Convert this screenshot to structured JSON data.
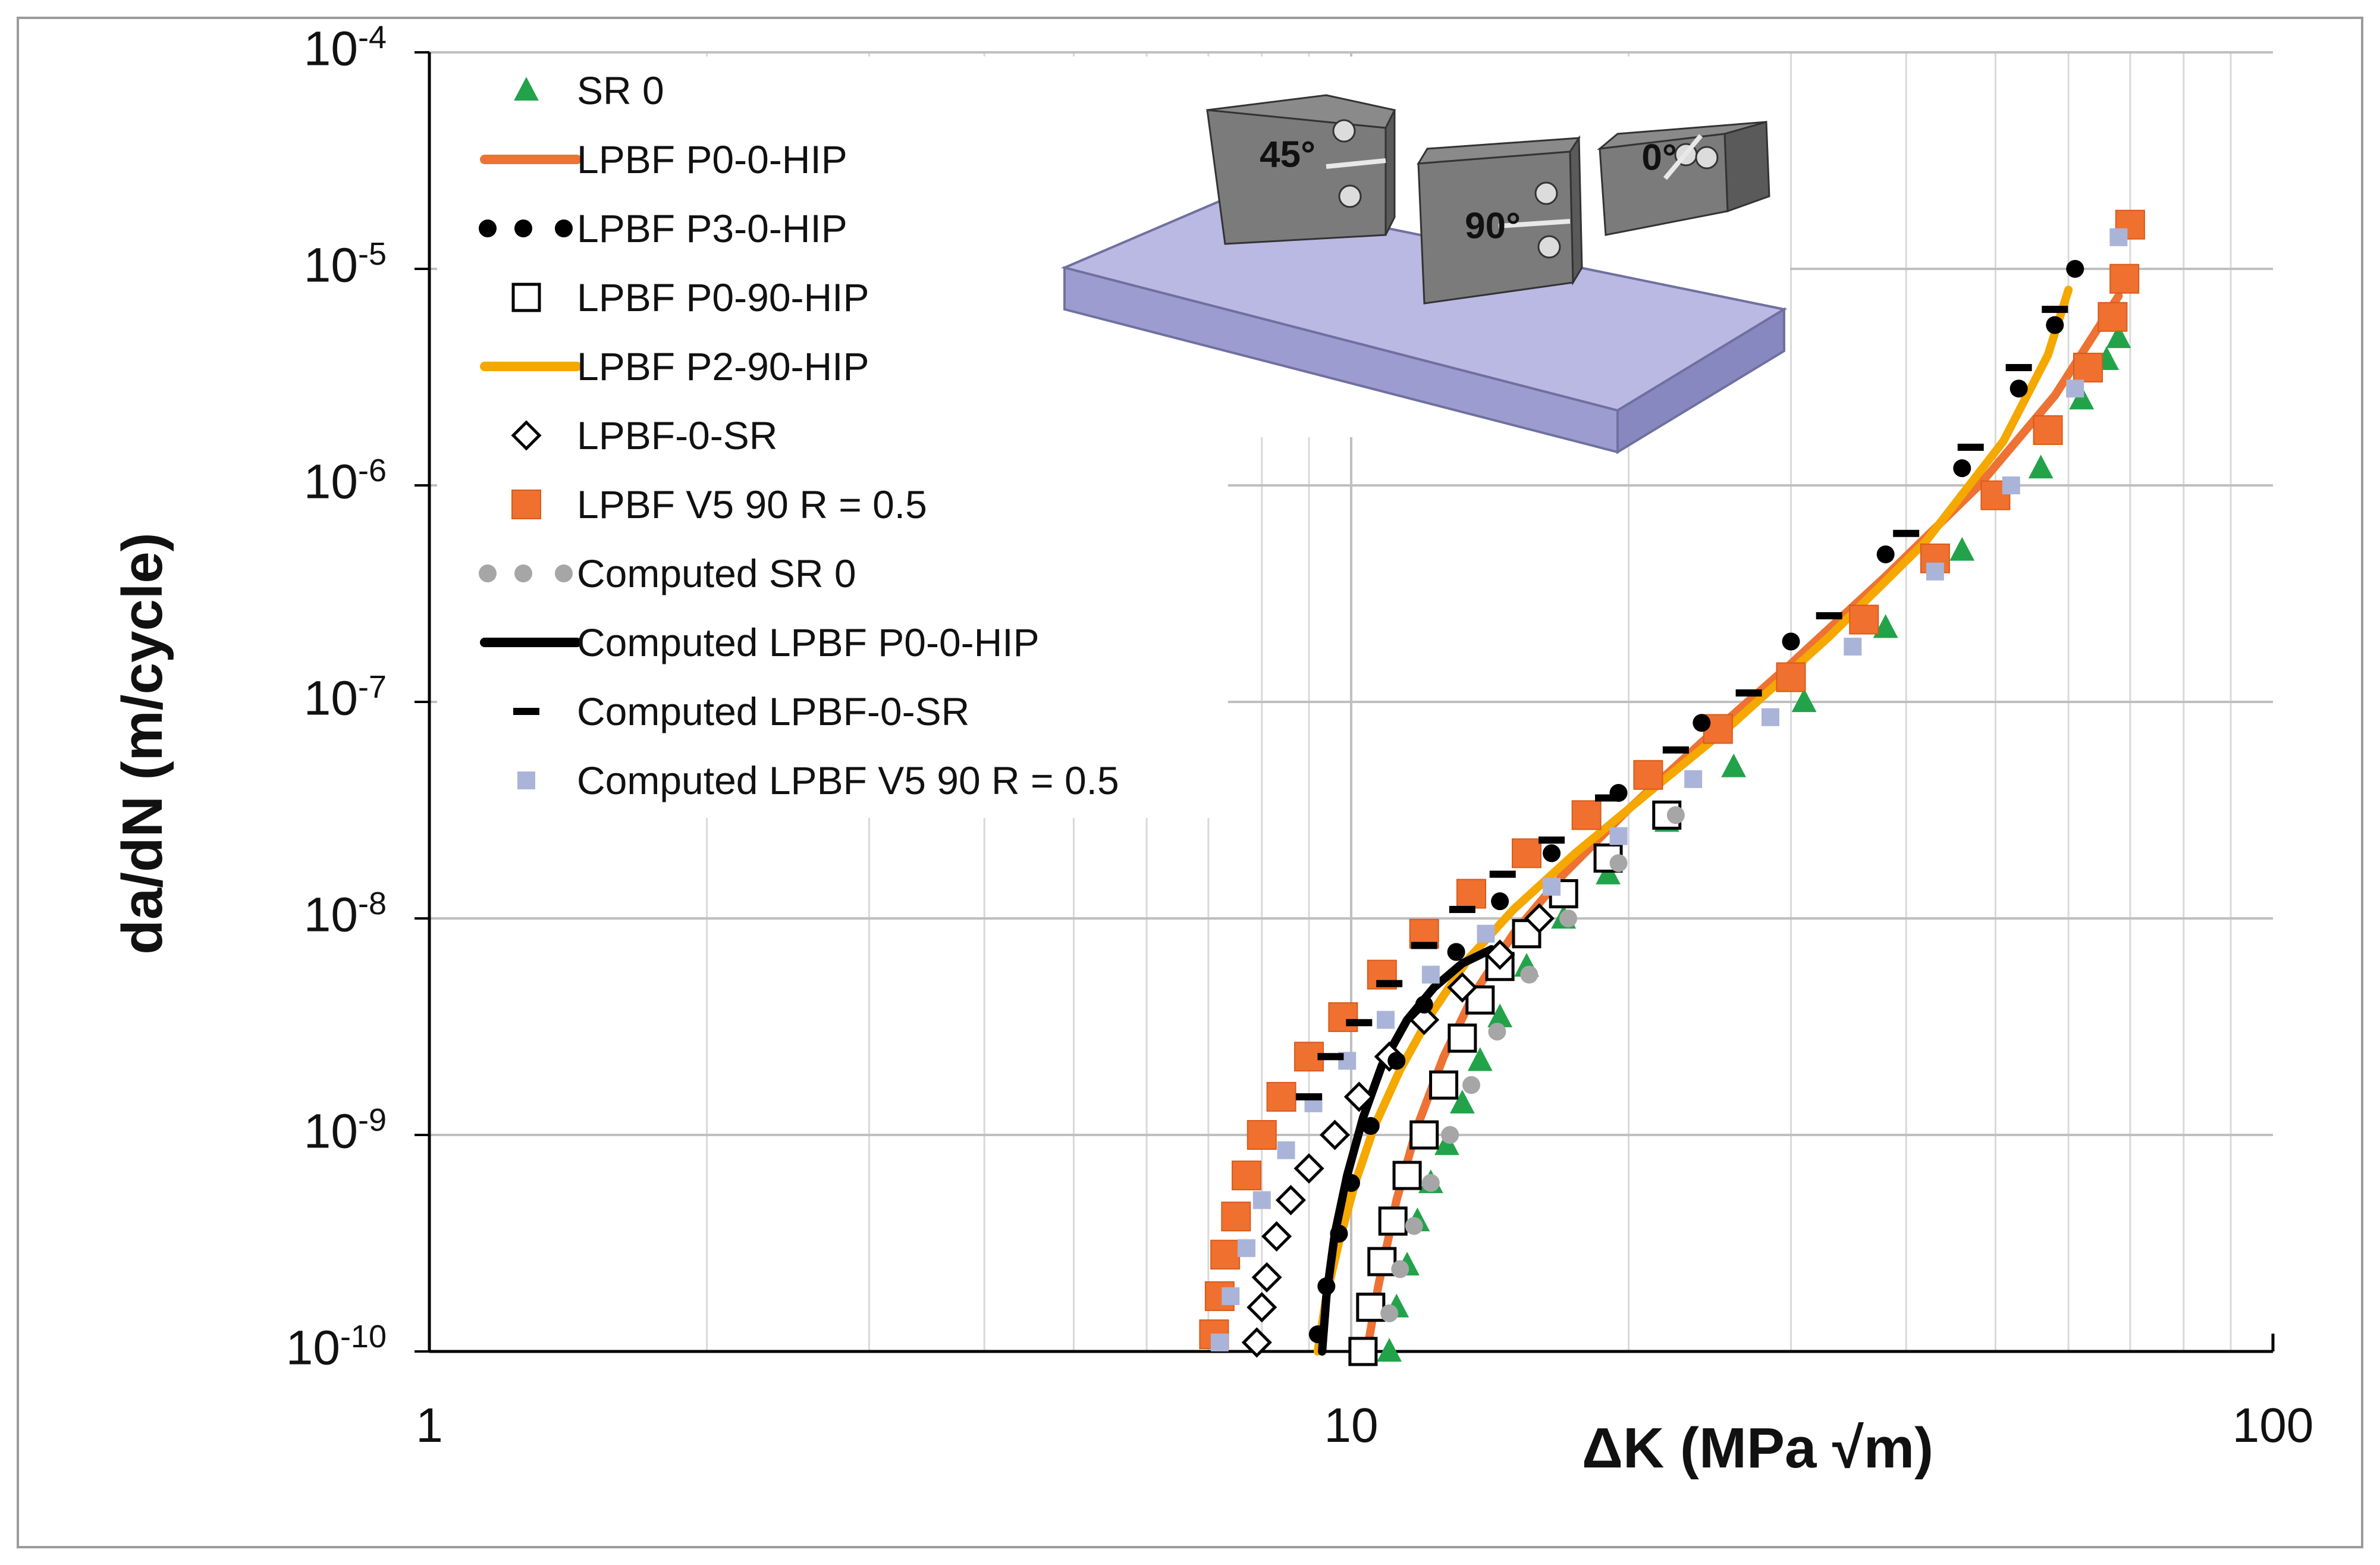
{
  "chart_data": {
    "type": "scatter",
    "title": "",
    "xlabel": "ΔK (MPa √m)",
    "ylabel": "da/dN (m/cycle)",
    "xscale": "log",
    "yscale": "log",
    "xlim": [
      1,
      100
    ],
    "ylim": [
      1e-10,
      0.0001
    ],
    "grid": true,
    "legend_position": "top-left",
    "x_ticks": [
      {
        "value": 1,
        "label": "1"
      },
      {
        "value": 10,
        "label": "10"
      },
      {
        "value": 100,
        "label": "100"
      }
    ],
    "y_ticks": [
      {
        "value": 0.0001,
        "base": "10",
        "exp": "-4"
      },
      {
        "value": 1e-05,
        "base": "10",
        "exp": "-5"
      },
      {
        "value": 1e-06,
        "base": "10",
        "exp": "-6"
      },
      {
        "value": 1e-07,
        "base": "10",
        "exp": "-7"
      },
      {
        "value": 1e-08,
        "base": "10",
        "exp": "-8"
      },
      {
        "value": 1e-09,
        "base": "10",
        "exp": "-9"
      },
      {
        "value": 1e-10,
        "base": "10",
        "exp": "-10"
      }
    ],
    "series": [
      {
        "name": "SR 0",
        "marker": "triangle",
        "color": "#22a34a",
        "x": [
          11.0,
          11.2,
          11.5,
          11.8,
          12.2,
          12.7,
          13.2,
          13.8,
          14.5,
          15.5,
          17.0,
          19.0,
          22.0,
          26.0,
          31.0,
          38.0,
          46.0,
          56.0,
          62.0,
          66.0,
          68.0
        ],
        "y": [
          1e-10,
          1.6e-10,
          2.5e-10,
          4e-10,
          6e-10,
          9e-10,
          1.4e-09,
          2.2e-09,
          3.5e-09,
          6e-09,
          1e-08,
          1.6e-08,
          2.8e-08,
          5e-08,
          1e-07,
          2.2e-07,
          5e-07,
          1.2e-06,
          2.5e-06,
          3.8e-06,
          4.8e-06
        ]
      },
      {
        "name": "LPBF P0-0-HIP",
        "marker": "line",
        "color": "#ed7233",
        "x": [
          10.4,
          10.7,
          11.2,
          11.8,
          12.6,
          13.6,
          15.0,
          17.0,
          20.0,
          24.0,
          30.0,
          38.0,
          48.0,
          58.0,
          64.0,
          68.0
        ],
        "y": [
          1e-10,
          2e-10,
          5e-10,
          1.1e-09,
          2.3e-09,
          4.5e-09,
          8.5e-09,
          1.6e-08,
          3.2e-08,
          6.5e-08,
          1.5e-07,
          3.8e-07,
          1e-06,
          2.6e-06,
          5e-06,
          7.5e-06
        ]
      },
      {
        "name": "LPBF P3-0-HIP",
        "marker": "dot",
        "color": "#000000",
        "x": [
          9.2,
          9.4,
          9.7,
          10.0,
          10.5,
          11.2,
          12.0,
          13.0,
          14.5,
          16.5,
          19.5,
          24.0,
          30.0,
          38.0,
          46.0,
          53.0,
          58.0,
          61.0
        ],
        "y": [
          1.2e-10,
          2e-10,
          3.5e-10,
          6e-10,
          1.1e-09,
          2.2e-09,
          4e-09,
          7e-09,
          1.2e-08,
          2e-08,
          3.8e-08,
          8e-08,
          1.9e-07,
          4.8e-07,
          1.2e-06,
          2.8e-06,
          5.5e-06,
          1e-05
        ]
      },
      {
        "name": "LPBF P0-90-HIP",
        "marker": "square-open",
        "color": "#000000",
        "x": [
          10.3,
          10.5,
          10.8,
          11.1,
          11.5,
          12.0,
          12.6,
          13.2,
          13.8,
          14.5,
          15.5,
          17.0,
          19.0,
          22.0
        ],
        "y": [
          1e-10,
          1.6e-10,
          2.6e-10,
          4e-10,
          6.5e-10,
          1e-09,
          1.7e-09,
          2.8e-09,
          4.2e-09,
          6e-09,
          8.5e-09,
          1.3e-08,
          1.9e-08,
          3e-08
        ]
      },
      {
        "name": "LPBF P2-90-HIP",
        "marker": "line",
        "color": "#f5a800",
        "x": [
          9.2,
          9.4,
          9.7,
          10.1,
          10.6,
          11.3,
          12.2,
          13.4,
          15.0,
          17.5,
          21.0,
          26.0,
          33.0,
          42.0,
          51.0,
          57.0,
          60.0
        ],
        "y": [
          1e-10,
          1.8e-10,
          3.2e-10,
          6e-10,
          1.1e-09,
          2e-09,
          3.6e-09,
          6.5e-09,
          1.1e-08,
          2e-08,
          3.8e-08,
          8e-08,
          2e-07,
          5.5e-07,
          1.6e-06,
          4e-06,
          8e-06
        ]
      },
      {
        "name": "LPBF-0-SR",
        "marker": "diamond-open",
        "color": "#000000",
        "x": [
          7.9,
          8.0,
          8.1,
          8.3,
          8.6,
          9.0,
          9.6,
          10.2,
          11.0,
          12.0,
          13.2,
          14.5,
          16.0
        ],
        "y": [
          1.1e-10,
          1.6e-10,
          2.2e-10,
          3.4e-10,
          5e-10,
          7e-10,
          1e-09,
          1.5e-09,
          2.3e-09,
          3.4e-09,
          4.8e-09,
          6.8e-09,
          1e-08
        ]
      },
      {
        "name": "LPBF V5 90  R = 0.5",
        "marker": "square",
        "color": "#f07030",
        "x": [
          7.1,
          7.2,
          7.3,
          7.5,
          7.7,
          8.0,
          8.4,
          9.0,
          9.8,
          10.8,
          12.0,
          13.5,
          15.5,
          18.0,
          21.0,
          25.0,
          30.0,
          36.0,
          43.0,
          50.0,
          57.0,
          63.0,
          67.0,
          69.0,
          70.0
        ],
        "y": [
          1.2e-10,
          1.8e-10,
          2.8e-10,
          4.2e-10,
          6.5e-10,
          1e-09,
          1.5e-09,
          2.3e-09,
          3.5e-09,
          5.5e-09,
          8.5e-09,
          1.3e-08,
          2e-08,
          3e-08,
          4.6e-08,
          7.5e-08,
          1.3e-07,
          2.4e-07,
          4.6e-07,
          9e-07,
          1.8e-06,
          3.5e-06,
          6e-06,
          9e-06,
          1.6e-05
        ]
      },
      {
        "name": "Computed SR 0",
        "marker": "dot",
        "color": "#a6a6a6",
        "x": [
          11.0,
          11.3,
          11.7,
          12.2,
          12.8,
          13.5,
          14.4,
          15.6,
          17.2,
          19.5,
          22.5
        ],
        "y": [
          1.5e-10,
          2.4e-10,
          3.8e-10,
          6e-10,
          1e-09,
          1.7e-09,
          3e-09,
          5.5e-09,
          1e-08,
          1.8e-08,
          3e-08
        ]
      },
      {
        "name": "Computed LPBF P0-0-HIP",
        "marker": "line",
        "color": "#000000",
        "x": [
          9.3,
          9.4,
          9.6,
          9.9,
          10.3,
          10.8,
          11.5,
          12.3,
          13.2,
          14.2
        ],
        "y": [
          1e-10,
          1.8e-10,
          3.5e-10,
          6.5e-10,
          1.2e-09,
          2.1e-09,
          3.4e-09,
          4.8e-09,
          6.2e-09,
          7.2e-09
        ]
      },
      {
        "name": "Computed LPBF-0-SR",
        "marker": "dash",
        "color": "#000000",
        "x": [
          9.0,
          9.5,
          10.2,
          11.0,
          12.0,
          13.2,
          14.6,
          16.5,
          19.0,
          22.5,
          27.0,
          33.0,
          40.0,
          47.0,
          53.0,
          58.0
        ],
        "y": [
          1.5e-09,
          2.3e-09,
          3.3e-09,
          5e-09,
          7.5e-09,
          1.1e-08,
          1.6e-08,
          2.3e-08,
          3.6e-08,
          6e-08,
          1.1e-07,
          2.5e-07,
          6e-07,
          1.5e-06,
          3.5e-06,
          6.5e-06
        ]
      },
      {
        "name": "Computed LPBF V5 90  R = 0.5",
        "marker": "square-small",
        "color": "#aab4d8",
        "x": [
          7.2,
          7.4,
          7.7,
          8.0,
          8.5,
          9.1,
          9.9,
          10.9,
          12.2,
          14.0,
          16.5,
          19.5,
          23.5,
          28.5,
          35.0,
          43.0,
          52.0,
          61.0,
          68.0
        ],
        "y": [
          1.1e-10,
          1.8e-10,
          3e-10,
          5e-10,
          8.5e-10,
          1.4e-09,
          2.2e-09,
          3.4e-09,
          5.5e-09,
          8.5e-09,
          1.4e-08,
          2.4e-08,
          4.4e-08,
          8.5e-08,
          1.8e-07,
          4e-07,
          1e-06,
          2.8e-06,
          1.4e-05
        ]
      }
    ]
  },
  "inset": {
    "description_labels": [
      "45°",
      "90°",
      "0°"
    ],
    "plate_color": "#b9b9e3",
    "specimen_color": "#7b7b7b"
  }
}
